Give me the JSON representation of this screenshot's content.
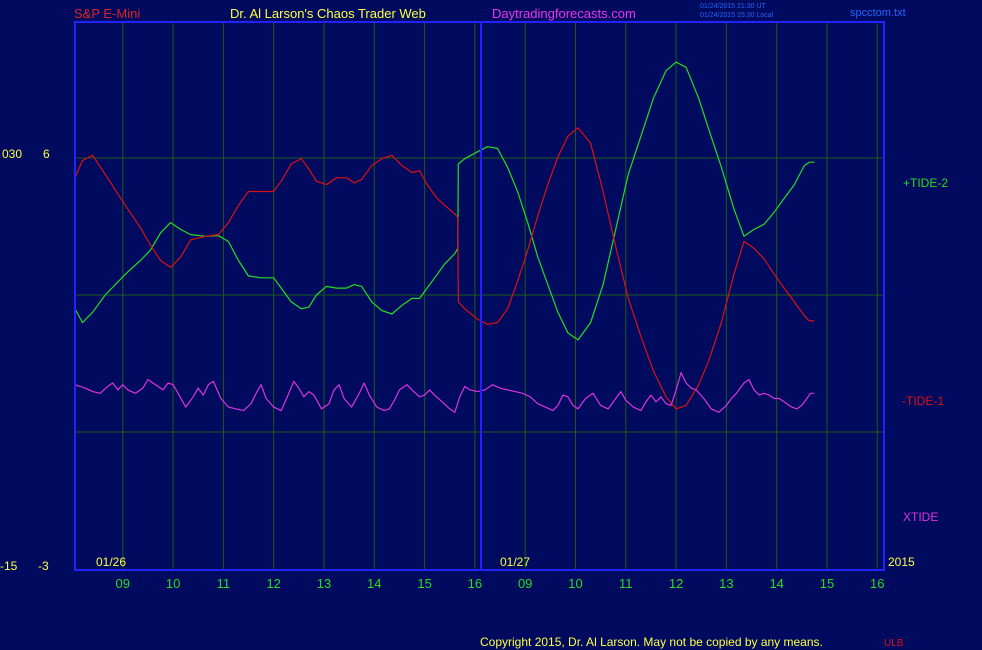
{
  "header": {
    "instrument": "S&P E-Mini",
    "author": "Dr. Al Larson's Chaos Trader Web",
    "site": "Daytradingforecasts.com",
    "stamp_1": "01/24/2015 21:30 UT",
    "stamp_2": "01/24/2015 15:30 Local",
    "file": "spcctom.txt"
  },
  "footer": {
    "copyright": "Copyright 2015, Dr. Al Larson. May not be copied by any means.",
    "mark": "ULB"
  },
  "colors": {
    "background": "#000a5e",
    "frame": "#2222ff",
    "grid": "#1e5a1e",
    "tide2": "#22dd22",
    "tide1": "#dd1111",
    "xtide": "#dd33dd",
    "axis_text": "#ffff44",
    "hour_text": "#22dd22",
    "instrument_text": "#dd2222",
    "author_text": "#ffff44",
    "site_text": "#ee33ee",
    "stamp_text": "#2266ff",
    "copyright_text": "#ffff44"
  },
  "chart_data": {
    "type": "line",
    "title": "S&P E-Mini",
    "left_axis": {
      "upper_labels": [
        "030",
        "6"
      ],
      "lower_labels": [
        "-15",
        "-3"
      ]
    },
    "date_labels": [
      "01/26",
      "01/27"
    ],
    "year_label": "2015",
    "hour_ticks": [
      "09",
      "10",
      "11",
      "12",
      "13",
      "14",
      "15",
      "16",
      "09",
      "10",
      "11",
      "12",
      "13",
      "14",
      "15",
      "16"
    ],
    "series": [
      {
        "name": "+TIDE-2",
        "values": [
          [
            0.0,
            -0.4
          ],
          [
            0.15,
            -0.8
          ],
          [
            0.35,
            -0.5
          ],
          [
            0.6,
            0.0
          ],
          [
            1.0,
            0.6
          ],
          [
            1.3,
            1.0
          ],
          [
            1.5,
            1.3
          ],
          [
            1.7,
            1.8
          ],
          [
            1.9,
            2.1
          ],
          [
            2.1,
            1.9
          ],
          [
            2.3,
            1.75
          ],
          [
            2.6,
            1.7
          ],
          [
            2.85,
            1.72
          ],
          [
            3.05,
            1.55
          ],
          [
            3.25,
            1.0
          ],
          [
            3.45,
            0.55
          ],
          [
            3.7,
            0.5
          ],
          [
            3.95,
            0.5
          ],
          [
            4.1,
            0.2
          ],
          [
            4.3,
            -0.2
          ],
          [
            4.5,
            -0.4
          ],
          [
            4.65,
            -0.35
          ],
          [
            4.8,
            0.0
          ],
          [
            5.0,
            0.25
          ],
          [
            5.2,
            0.2
          ],
          [
            5.4,
            0.2
          ],
          [
            5.55,
            0.3
          ],
          [
            5.7,
            0.25
          ],
          [
            5.9,
            -0.2
          ],
          [
            6.1,
            -0.45
          ],
          [
            6.3,
            -0.55
          ],
          [
            6.5,
            -0.3
          ],
          [
            6.7,
            -0.1
          ],
          [
            6.85,
            -0.1
          ],
          [
            7.0,
            0.2
          ],
          [
            7.2,
            0.6
          ],
          [
            7.35,
            0.9
          ],
          [
            7.55,
            1.2
          ],
          [
            7.61,
            1.35
          ],
          [
            7.62,
            3.8
          ],
          [
            7.75,
            3.95
          ],
          [
            8.0,
            4.15
          ],
          [
            8.2,
            4.3
          ],
          [
            8.4,
            4.25
          ],
          [
            8.6,
            3.7
          ],
          [
            8.8,
            3.0
          ],
          [
            9.0,
            2.1
          ],
          [
            9.2,
            1.1
          ],
          [
            9.4,
            0.3
          ],
          [
            9.6,
            -0.5
          ],
          [
            9.8,
            -1.1
          ],
          [
            10.0,
            -1.3
          ],
          [
            10.25,
            -0.8
          ],
          [
            10.5,
            0.3
          ],
          [
            10.75,
            1.9
          ],
          [
            11.0,
            3.5
          ],
          [
            11.25,
            4.6
          ],
          [
            11.5,
            5.7
          ],
          [
            11.75,
            6.5
          ],
          [
            11.95,
            6.75
          ],
          [
            12.15,
            6.6
          ],
          [
            12.4,
            5.7
          ],
          [
            12.6,
            4.8
          ],
          [
            12.85,
            3.7
          ],
          [
            13.1,
            2.5
          ],
          [
            13.3,
            1.7
          ],
          [
            13.5,
            1.9
          ],
          [
            13.7,
            2.05
          ],
          [
            13.9,
            2.4
          ],
          [
            14.1,
            2.8
          ],
          [
            14.3,
            3.2
          ],
          [
            14.5,
            3.75
          ],
          [
            14.6,
            3.85
          ],
          [
            14.7,
            3.85
          ]
        ]
      },
      {
        "name": "-TIDE-1",
        "values": [
          [
            0.0,
            3.4
          ],
          [
            0.15,
            3.9
          ],
          [
            0.35,
            4.05
          ],
          [
            0.6,
            3.5
          ],
          [
            1.0,
            2.6
          ],
          [
            1.3,
            1.95
          ],
          [
            1.5,
            1.45
          ],
          [
            1.7,
            1.0
          ],
          [
            1.9,
            0.8
          ],
          [
            2.1,
            1.1
          ],
          [
            2.3,
            1.6
          ],
          [
            2.6,
            1.7
          ],
          [
            2.85,
            1.75
          ],
          [
            3.05,
            2.1
          ],
          [
            3.25,
            2.6
          ],
          [
            3.45,
            3.0
          ],
          [
            3.7,
            3.0
          ],
          [
            3.95,
            3.0
          ],
          [
            4.1,
            3.3
          ],
          [
            4.3,
            3.8
          ],
          [
            4.5,
            3.95
          ],
          [
            4.65,
            3.65
          ],
          [
            4.8,
            3.3
          ],
          [
            5.0,
            3.2
          ],
          [
            5.2,
            3.4
          ],
          [
            5.4,
            3.4
          ],
          [
            5.55,
            3.25
          ],
          [
            5.7,
            3.35
          ],
          [
            5.9,
            3.75
          ],
          [
            6.1,
            3.95
          ],
          [
            6.3,
            4.05
          ],
          [
            6.5,
            3.75
          ],
          [
            6.7,
            3.55
          ],
          [
            6.85,
            3.6
          ],
          [
            7.0,
            3.2
          ],
          [
            7.2,
            2.8
          ],
          [
            7.35,
            2.6
          ],
          [
            7.55,
            2.35
          ],
          [
            7.61,
            2.25
          ],
          [
            7.62,
            -0.2
          ],
          [
            7.75,
            -0.4
          ],
          [
            8.0,
            -0.7
          ],
          [
            8.2,
            -0.85
          ],
          [
            8.4,
            -0.8
          ],
          [
            8.6,
            -0.4
          ],
          [
            8.8,
            0.4
          ],
          [
            9.0,
            1.3
          ],
          [
            9.2,
            2.3
          ],
          [
            9.4,
            3.2
          ],
          [
            9.6,
            4.0
          ],
          [
            9.8,
            4.6
          ],
          [
            10.0,
            4.85
          ],
          [
            10.25,
            4.4
          ],
          [
            10.5,
            3.0
          ],
          [
            10.75,
            1.4
          ],
          [
            11.0,
            -0.1
          ],
          [
            11.25,
            -1.2
          ],
          [
            11.5,
            -2.2
          ],
          [
            11.75,
            -2.95
          ],
          [
            11.95,
            -3.3
          ],
          [
            12.15,
            -3.2
          ],
          [
            12.4,
            -2.6
          ],
          [
            12.6,
            -1.9
          ],
          [
            12.85,
            -0.8
          ],
          [
            13.1,
            0.6
          ],
          [
            13.3,
            1.55
          ],
          [
            13.5,
            1.35
          ],
          [
            13.7,
            1.05
          ],
          [
            13.9,
            0.6
          ],
          [
            14.1,
            0.2
          ],
          [
            14.3,
            -0.2
          ],
          [
            14.5,
            -0.6
          ],
          [
            14.6,
            -0.75
          ],
          [
            14.7,
            -0.75
          ]
        ]
      },
      {
        "name": "XTIDE",
        "values": [
          [
            0.0,
            -2.6
          ],
          [
            0.2,
            -2.7
          ],
          [
            0.35,
            -2.8
          ],
          [
            0.5,
            -2.85
          ],
          [
            0.65,
            -2.65
          ],
          [
            0.75,
            -2.55
          ],
          [
            0.85,
            -2.75
          ],
          [
            0.95,
            -2.6
          ],
          [
            1.05,
            -2.75
          ],
          [
            1.2,
            -2.85
          ],
          [
            1.35,
            -2.7
          ],
          [
            1.45,
            -2.45
          ],
          [
            1.55,
            -2.55
          ],
          [
            1.65,
            -2.65
          ],
          [
            1.75,
            -2.75
          ],
          [
            1.85,
            -2.55
          ],
          [
            1.95,
            -2.6
          ],
          [
            2.05,
            -2.85
          ],
          [
            2.2,
            -3.25
          ],
          [
            2.35,
            -2.95
          ],
          [
            2.45,
            -2.7
          ],
          [
            2.55,
            -2.9
          ],
          [
            2.65,
            -2.6
          ],
          [
            2.75,
            -2.5
          ],
          [
            2.9,
            -3.0
          ],
          [
            3.05,
            -3.25
          ],
          [
            3.2,
            -3.3
          ],
          [
            3.35,
            -3.35
          ],
          [
            3.5,
            -3.15
          ],
          [
            3.6,
            -2.85
          ],
          [
            3.7,
            -2.6
          ],
          [
            3.8,
            -3.0
          ],
          [
            3.95,
            -3.25
          ],
          [
            4.1,
            -3.35
          ],
          [
            4.25,
            -2.85
          ],
          [
            4.35,
            -2.5
          ],
          [
            4.45,
            -2.7
          ],
          [
            4.55,
            -2.95
          ],
          [
            4.65,
            -2.8
          ],
          [
            4.75,
            -2.9
          ],
          [
            4.9,
            -3.3
          ],
          [
            5.05,
            -3.15
          ],
          [
            5.15,
            -2.75
          ],
          [
            5.25,
            -2.6
          ],
          [
            5.35,
            -3.0
          ],
          [
            5.5,
            -3.25
          ],
          [
            5.65,
            -2.85
          ],
          [
            5.75,
            -2.55
          ],
          [
            5.85,
            -2.9
          ],
          [
            6.0,
            -3.25
          ],
          [
            6.15,
            -3.35
          ],
          [
            6.25,
            -3.3
          ],
          [
            6.35,
            -3.05
          ],
          [
            6.45,
            -2.75
          ],
          [
            6.6,
            -2.6
          ],
          [
            6.7,
            -2.75
          ],
          [
            6.85,
            -2.95
          ],
          [
            6.95,
            -2.9
          ],
          [
            7.05,
            -2.75
          ],
          [
            7.15,
            -2.9
          ],
          [
            7.3,
            -3.1
          ],
          [
            7.45,
            -3.3
          ],
          [
            7.55,
            -3.4
          ],
          [
            7.65,
            -2.95
          ],
          [
            7.75,
            -2.65
          ],
          [
            7.85,
            -2.75
          ],
          [
            8.0,
            -2.8
          ],
          [
            8.15,
            -2.75
          ],
          [
            8.3,
            -2.6
          ],
          [
            8.45,
            -2.7
          ],
          [
            8.6,
            -2.75
          ],
          [
            8.75,
            -2.8
          ],
          [
            8.9,
            -2.85
          ],
          [
            9.05,
            -2.95
          ],
          [
            9.2,
            -3.15
          ],
          [
            9.35,
            -3.25
          ],
          [
            9.5,
            -3.35
          ],
          [
            9.6,
            -3.2
          ],
          [
            9.7,
            -2.9
          ],
          [
            9.8,
            -2.95
          ],
          [
            9.9,
            -3.2
          ],
          [
            10.0,
            -3.3
          ],
          [
            10.15,
            -3.0
          ],
          [
            10.3,
            -2.85
          ],
          [
            10.45,
            -3.2
          ],
          [
            10.6,
            -3.3
          ],
          [
            10.75,
            -3.0
          ],
          [
            10.85,
            -2.8
          ],
          [
            10.95,
            -3.05
          ],
          [
            11.1,
            -3.25
          ],
          [
            11.25,
            -3.35
          ],
          [
            11.35,
            -3.1
          ],
          [
            11.45,
            -2.9
          ],
          [
            11.55,
            -3.1
          ],
          [
            11.65,
            -2.95
          ],
          [
            11.75,
            -3.15
          ],
          [
            11.85,
            -3.2
          ],
          [
            11.95,
            -2.75
          ],
          [
            12.05,
            -2.25
          ],
          [
            12.15,
            -2.55
          ],
          [
            12.25,
            -2.7
          ],
          [
            12.35,
            -2.75
          ],
          [
            12.5,
            -3.0
          ],
          [
            12.65,
            -3.3
          ],
          [
            12.8,
            -3.4
          ],
          [
            12.95,
            -3.2
          ],
          [
            13.05,
            -3.0
          ],
          [
            13.15,
            -2.85
          ],
          [
            13.3,
            -2.55
          ],
          [
            13.4,
            -2.45
          ],
          [
            13.5,
            -2.75
          ],
          [
            13.6,
            -2.9
          ],
          [
            13.7,
            -2.85
          ],
          [
            13.8,
            -2.9
          ],
          [
            13.9,
            -3.0
          ],
          [
            14.0,
            -3.0
          ],
          [
            14.1,
            -3.1
          ],
          [
            14.25,
            -3.25
          ],
          [
            14.35,
            -3.3
          ],
          [
            14.45,
            -3.2
          ],
          [
            14.55,
            -3.0
          ],
          [
            14.62,
            -2.85
          ],
          [
            14.7,
            -2.85
          ]
        ]
      }
    ]
  }
}
